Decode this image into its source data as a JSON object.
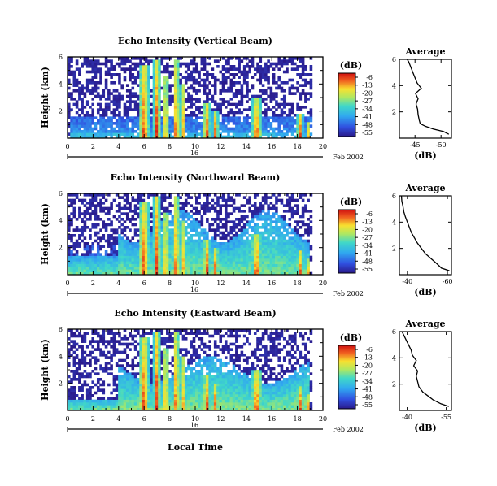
{
  "chart_data": [
    {
      "type": "heatmap",
      "title": "Echo Intensity (Vertical Beam)",
      "ylabel": "Height (km)",
      "yticks": [
        "2",
        "4",
        "6"
      ],
      "xticks": [
        "0",
        "2",
        "4",
        "6",
        "8",
        "10",
        "12",
        "14",
        "16",
        "18",
        "20"
      ],
      "date_marker": "16",
      "date_label": "Feb 2002",
      "xlim": [
        0,
        20
      ],
      "ylim": [
        0,
        6
      ],
      "colorbar": {
        "label": "(dB)",
        "ticks": [
          "-6",
          "-13",
          "-20",
          "-27",
          "-34",
          "-41",
          "-48",
          "-55"
        ]
      },
      "average": {
        "title": "Average",
        "xlabel": "(dB)",
        "xticks": [
          "-45",
          "-50"
        ],
        "yticks": [
          "2",
          "4",
          "6"
        ],
        "xlim": [
          -42,
          -52
        ],
        "points": [
          [
            -51.5,
            0.3
          ],
          [
            -50.5,
            0.5
          ],
          [
            -48.5,
            0.7
          ],
          [
            -47,
            0.9
          ],
          [
            -46,
            1.1
          ],
          [
            -45.8,
            1.4
          ],
          [
            -45.6,
            1.8
          ],
          [
            -45.5,
            2.2
          ],
          [
            -45.2,
            2.6
          ],
          [
            -45.6,
            3.0
          ],
          [
            -45.1,
            3.4
          ],
          [
            -46.2,
            3.8
          ],
          [
            -45.4,
            4.2
          ],
          [
            -45.0,
            4.6
          ],
          [
            -44.6,
            5.0
          ],
          [
            -44.2,
            5.4
          ],
          [
            -43.8,
            5.8
          ],
          [
            -43.5,
            6.0
          ]
        ]
      }
    },
    {
      "type": "heatmap",
      "title": "Echo Intensity (Northward Beam)",
      "ylabel": "Height (km)",
      "yticks": [
        "2",
        "4",
        "6"
      ],
      "xticks": [
        "0",
        "2",
        "4",
        "6",
        "8",
        "10",
        "12",
        "14",
        "16",
        "18",
        "20"
      ],
      "date_marker": "16",
      "date_label": "Feb 2002",
      "xlim": [
        0,
        20
      ],
      "ylim": [
        0,
        6
      ],
      "colorbar": {
        "label": "(dB)",
        "ticks": [
          "-6",
          "-13",
          "-20",
          "-27",
          "-34",
          "-41",
          "-48",
          "-55"
        ]
      },
      "average": {
        "title": "Average",
        "xlabel": "(dB)",
        "xticks": [
          "-40",
          "-60"
        ],
        "yticks": [
          "2",
          "4",
          "6"
        ],
        "xlim": [
          -36,
          -62
        ],
        "points": [
          [
            -61,
            0.3
          ],
          [
            -57,
            0.5
          ],
          [
            -55,
            0.8
          ],
          [
            -52,
            1.2
          ],
          [
            -49,
            1.6
          ],
          [
            -47,
            2.0
          ],
          [
            -45,
            2.4
          ],
          [
            -43.5,
            2.8
          ],
          [
            -42,
            3.2
          ],
          [
            -41,
            3.6
          ],
          [
            -40,
            4.0
          ],
          [
            -39,
            4.4
          ],
          [
            -38.2,
            4.8
          ],
          [
            -37.8,
            5.2
          ],
          [
            -37.2,
            5.6
          ],
          [
            -37,
            6.0
          ]
        ]
      }
    },
    {
      "type": "heatmap",
      "title": "Echo Intensity (Eastward Beam)",
      "ylabel": "Height (km)",
      "yticks": [
        "2",
        "4",
        "6"
      ],
      "xticks": [
        "0",
        "2",
        "4",
        "6",
        "8",
        "10",
        "12",
        "14",
        "16",
        "18",
        "20"
      ],
      "date_marker": "16",
      "date_label": "Feb 2002",
      "xlabel": "Local Time",
      "xlim": [
        0,
        20
      ],
      "ylim": [
        0,
        6
      ],
      "colorbar": {
        "label": "(dB)",
        "ticks": [
          "-6",
          "-13",
          "-20",
          "-27",
          "-34",
          "-41",
          "-48",
          "-55"
        ]
      },
      "average": {
        "title": "Average",
        "xlabel": "(dB)",
        "xticks": [
          "-40",
          "-55"
        ],
        "yticks": [
          "2",
          "4",
          "6"
        ],
        "xlim": [
          -37,
          -57
        ],
        "points": [
          [
            -56,
            0.3
          ],
          [
            -53,
            0.5
          ],
          [
            -50,
            0.8
          ],
          [
            -48,
            1.1
          ],
          [
            -46,
            1.4
          ],
          [
            -44.5,
            1.8
          ],
          [
            -44,
            2.2
          ],
          [
            -43.5,
            2.6
          ],
          [
            -44,
            3.0
          ],
          [
            -42.5,
            3.4
          ],
          [
            -43.5,
            3.8
          ],
          [
            -42,
            4.2
          ],
          [
            -41.5,
            4.6
          ],
          [
            -40.5,
            5.0
          ],
          [
            -39.5,
            5.4
          ],
          [
            -38.5,
            5.8
          ],
          [
            -38,
            6.0
          ]
        ]
      }
    }
  ]
}
